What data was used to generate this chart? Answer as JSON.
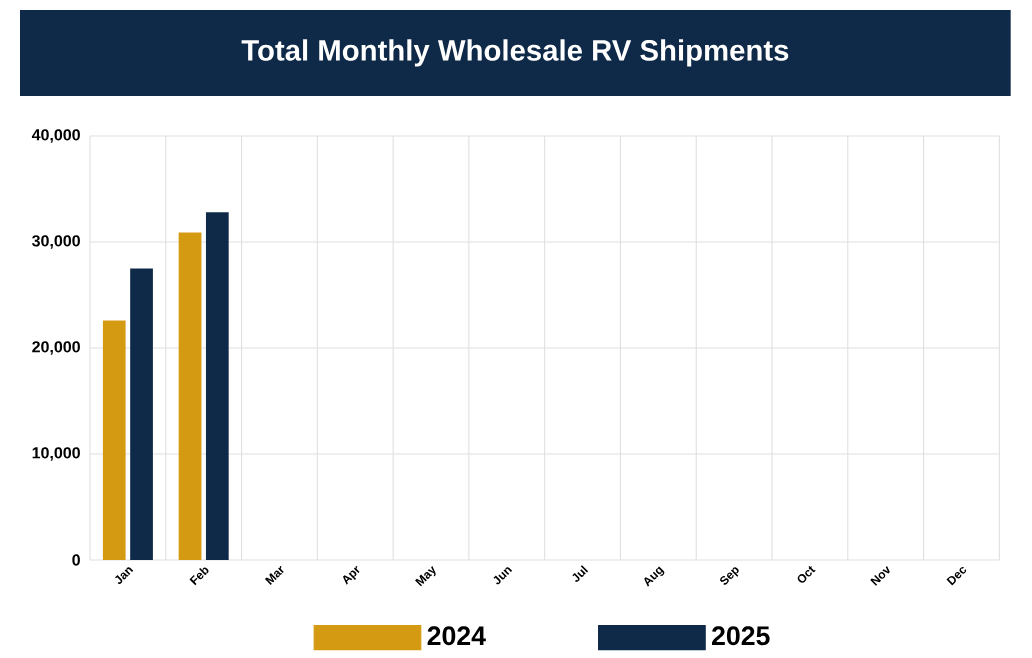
{
  "chart_data": {
    "type": "bar",
    "title": "Total Monthly Wholesale RV Shipments",
    "categories": [
      "Jan",
      "Feb",
      "Mar",
      "Apr",
      "May",
      "Jun",
      "Jul",
      "Aug",
      "Sep",
      "Oct",
      "Nov",
      "Dec"
    ],
    "series": [
      {
        "name": "2024",
        "color": "#d49b12",
        "values": [
          22600,
          30900,
          null,
          null,
          null,
          null,
          null,
          null,
          null,
          null,
          null,
          null
        ]
      },
      {
        "name": "2025",
        "color": "#0f2a48",
        "values": [
          27500,
          32800,
          null,
          null,
          null,
          null,
          null,
          null,
          null,
          null,
          null,
          null
        ]
      }
    ],
    "ylim": [
      0,
      40000
    ],
    "yticks": [
      {
        "value": 0,
        "label": "0"
      },
      {
        "value": 10000,
        "label": "10,000"
      },
      {
        "value": 20000,
        "label": "20,000"
      },
      {
        "value": 30000,
        "label": "30,000"
      },
      {
        "value": 40000,
        "label": "40,000"
      }
    ],
    "grid": true,
    "legend": "bottom"
  }
}
